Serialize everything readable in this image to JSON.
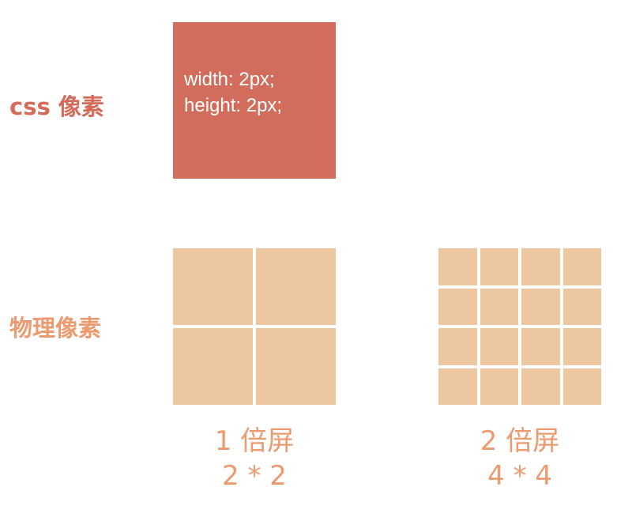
{
  "labels": {
    "css_pixels": "css 像素",
    "physical_pixels": "物理像素"
  },
  "css_box": {
    "line1": "width: 2px;",
    "line2": "height: 2px;"
  },
  "screens": [
    {
      "title": "1 倍屏",
      "dims": "2 * 2",
      "grid_size": 2
    },
    {
      "title": "2 倍屏",
      "dims": "4 * 4",
      "grid_size": 4
    }
  ],
  "colors": {
    "css_box": "#d26d5d",
    "css_label": "#d46a58",
    "physical_cell": "#ecc79f",
    "physical_label": "#ec9a70"
  }
}
